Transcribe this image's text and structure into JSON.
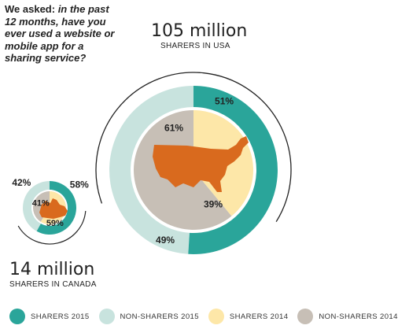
{
  "question": {
    "prefix": "We asked: ",
    "emphasis": "in the past 12 months,",
    "rest": "have you ever used a website or mobile app for a sharing service?"
  },
  "usa": {
    "number": "105 million",
    "label": "SHARERS IN USA"
  },
  "canada": {
    "number": "14 million",
    "label": "SHARERS IN CANADA"
  },
  "colors": {
    "sharers_2015": "#2aa59a",
    "non_sharers_2015": "#c8e3de",
    "sharers_2014": "#fde7a8",
    "non_sharers_2014": "#c7bfb6",
    "map": "#d96a1e"
  },
  "legend": [
    {
      "label": "SHARERS 2015",
      "color": "#2aa59a"
    },
    {
      "label": "NON-SHARERS 2015",
      "color": "#c8e3de"
    },
    {
      "label": "SHARERS 2014",
      "color": "#fde7a8"
    },
    {
      "label": "NON-SHARERS 2014",
      "color": "#c7bfb6"
    }
  ],
  "chart_data": [
    {
      "type": "pie",
      "name": "USA",
      "outer_ring": {
        "year": "2015",
        "sharers": 51,
        "non_sharers": 49
      },
      "inner_pie": {
        "year": "2014",
        "sharers": 39,
        "non_sharers": 61
      },
      "labels": {
        "outer_sharers": "51%",
        "outer_non_sharers": "49%",
        "inner_sharers": "39%",
        "inner_non_sharers": "61%"
      }
    },
    {
      "type": "pie",
      "name": "Canada",
      "outer_ring": {
        "year": "2015",
        "sharers": 58,
        "non_sharers": 42
      },
      "inner_pie": {
        "year": "2014",
        "sharers": 59,
        "non_sharers": 41
      },
      "labels": {
        "outer_sharers": "58%",
        "outer_non_sharers": "42%",
        "inner_sharers": "59%",
        "inner_non_sharers": "41%"
      }
    }
  ]
}
